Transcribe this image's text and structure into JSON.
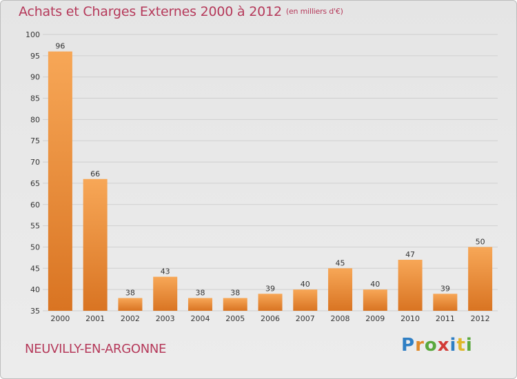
{
  "header": {
    "title": "Achats et Charges Externes 2000 à 2012",
    "subtitle": "(en milliers d'€)"
  },
  "footer": {
    "commune": "NEUVILLY-EN-ARGONNE",
    "logo_text": "Proxiti"
  },
  "colors": {
    "bar_light": "#f7a757",
    "bar_dark": "#d97422",
    "title": "#b5395a"
  },
  "chart_data": {
    "type": "bar",
    "title": "Achats et Charges Externes 2000 à 2012",
    "subtitle": "(en milliers d'€)",
    "categories": [
      "2000",
      "2001",
      "2002",
      "2003",
      "2004",
      "2005",
      "2006",
      "2007",
      "2008",
      "2009",
      "2010",
      "2011",
      "2012"
    ],
    "values": [
      96,
      66,
      38,
      43,
      38,
      38,
      39,
      40,
      45,
      40,
      47,
      39,
      50
    ],
    "data_labels": [
      "96",
      "66",
      "38",
      "43",
      "38",
      "38",
      "39",
      "40",
      "45",
      "40",
      "47",
      "39",
      "50"
    ],
    "ylim": [
      35,
      100
    ],
    "yticks": [
      "35",
      "40",
      "45",
      "50",
      "55",
      "60",
      "65",
      "70",
      "75",
      "80",
      "85",
      "90",
      "95",
      "100"
    ],
    "grid": true,
    "legend": "none"
  }
}
